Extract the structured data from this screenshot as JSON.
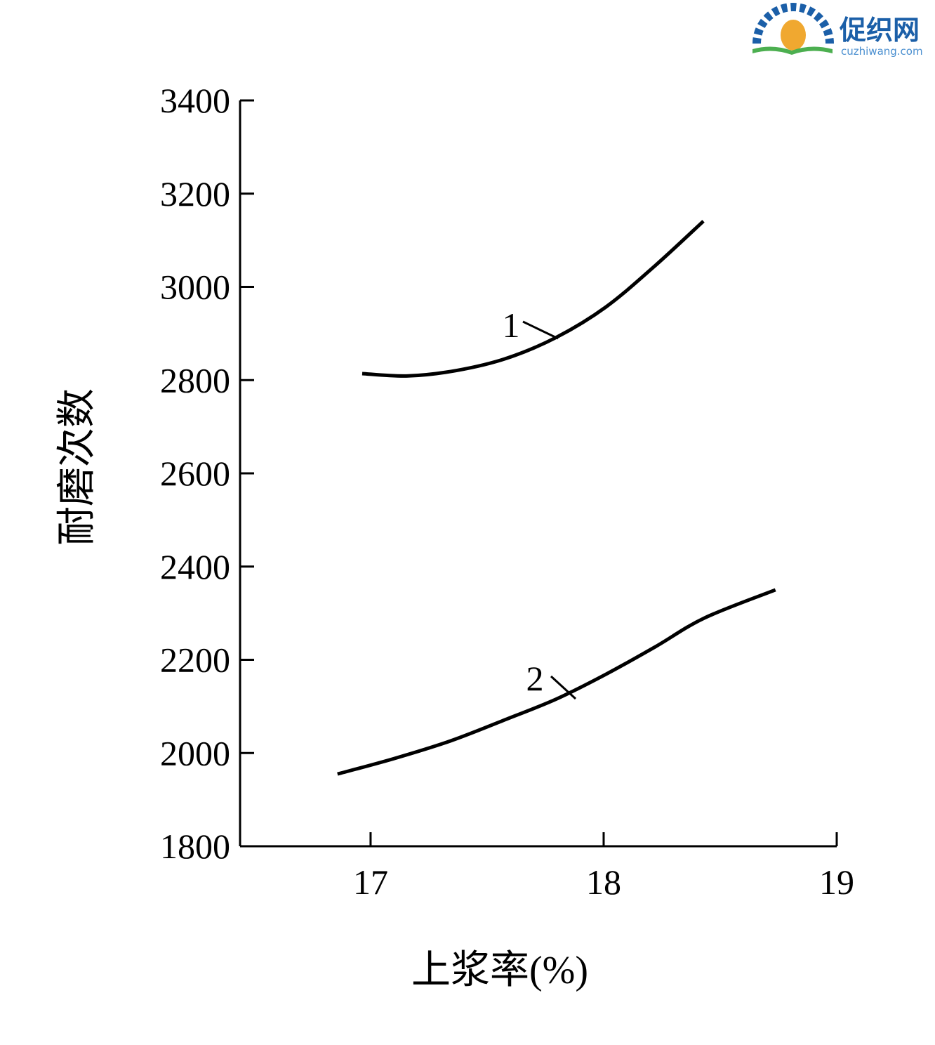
{
  "chart_data": {
    "type": "line",
    "xlabel": "上浆率(%)",
    "ylabel": "耐磨次数",
    "xlim": [
      16.44,
      19
    ],
    "xticks": [
      17,
      18,
      19
    ],
    "ylim": [
      1800,
      3400
    ],
    "yticks": [
      1800,
      2000,
      2200,
      2400,
      2600,
      2800,
      3000,
      3200,
      3400
    ],
    "series": [
      {
        "name": "1",
        "color": "#000000",
        "x": [
          16.964,
          17.161,
          17.373,
          17.585,
          17.798,
          18.01,
          18.222,
          18.428
        ],
        "values": [
          2814,
          2809,
          2821,
          2847,
          2892,
          2957,
          3046,
          3141
        ]
      },
      {
        "name": "2",
        "color": "#000000",
        "x": [
          16.858,
          17.1,
          17.343,
          17.585,
          17.798,
          18.01,
          18.222,
          18.434,
          18.737
        ],
        "values": [
          1955,
          1988,
          2026,
          2073,
          2116,
          2169,
          2228,
          2290,
          2350
        ]
      }
    ]
  },
  "watermark": {
    "name": "促织网",
    "url": "cuzhiwang.com"
  }
}
